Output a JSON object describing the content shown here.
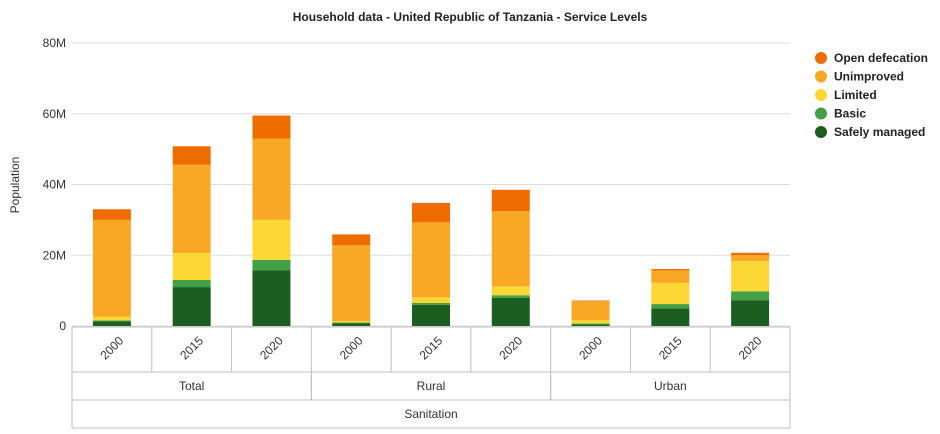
{
  "chart_data": {
    "type": "bar",
    "stacked": true,
    "title": "Household data - United Republic of Tanzania - Service Levels",
    "ylabel": "Population",
    "ylim": [
      0,
      80000000
    ],
    "yticks": [
      {
        "value": 0,
        "label": "0"
      },
      {
        "value": 20000000,
        "label": "20M"
      },
      {
        "value": 40000000,
        "label": "40M"
      },
      {
        "value": 60000000,
        "label": "60M"
      },
      {
        "value": 80000000,
        "label": "80M"
      }
    ],
    "grid": true,
    "legend_position": "right",
    "categories": [
      "2000",
      "2015",
      "2020",
      "2000",
      "2015",
      "2020",
      "2000",
      "2015",
      "2020"
    ],
    "groups": [
      {
        "label": "Total",
        "span": 3
      },
      {
        "label": "Rural",
        "span": 3
      },
      {
        "label": "Urban",
        "span": 3
      }
    ],
    "super_group": "Sanitation",
    "series": [
      {
        "name": "Safely managed",
        "color": "#1b5e20",
        "values": [
          1300000,
          11000000,
          15700000,
          800000,
          6000000,
          8000000,
          400000,
          5000000,
          7300000
        ]
      },
      {
        "name": "Basic",
        "color": "#43a047",
        "values": [
          300000,
          2000000,
          3000000,
          200000,
          500000,
          700000,
          300000,
          1200000,
          2500000
        ]
      },
      {
        "name": "Limited",
        "color": "#fdd835",
        "values": [
          1000000,
          7600000,
          11300000,
          400000,
          1600000,
          2500000,
          900000,
          6000000,
          8500000
        ]
      },
      {
        "name": "Unimproved",
        "color": "#f9a825",
        "values": [
          27400000,
          25000000,
          23000000,
          21400000,
          21200000,
          21300000,
          5400000,
          3500000,
          1700000
        ]
      },
      {
        "name": "Open defecation",
        "color": "#ef6c00",
        "values": [
          3000000,
          5200000,
          6500000,
          3100000,
          5500000,
          6000000,
          200000,
          400000,
          700000
        ]
      }
    ]
  }
}
